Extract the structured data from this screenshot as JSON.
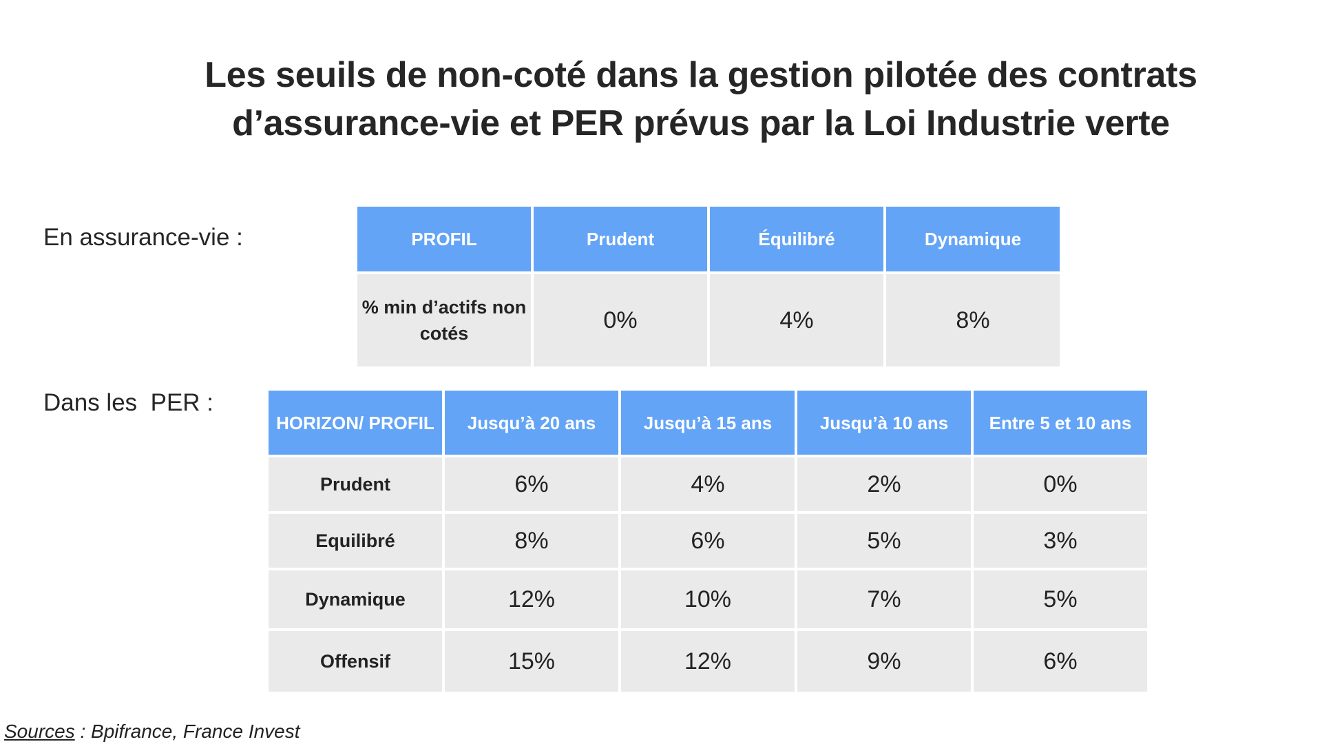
{
  "title": {
    "line1": "Les seuils de non-coté dans la gestion pilotée des contrats",
    "line2": "d’assurance-vie et PER prévus par la Loi Industrie verte"
  },
  "assurance_vie": {
    "label": "En assurance-vie :",
    "headers": [
      "PROFIL",
      "Prudent",
      "Équilibré",
      "Dynamique"
    ],
    "row_label": "% min d’actifs non cotés",
    "values": [
      "0%",
      "4%",
      "8%"
    ]
  },
  "per": {
    "label": "Dans les  PER :",
    "header_corner": "HORIZON/ PROFIL",
    "headers": [
      "Jusqu’à 20 ans",
      "Jusqu’à 15 ans",
      "Jusqu’à 10 ans",
      "Entre 5 et 10 ans"
    ],
    "rows": [
      {
        "profile": "Prudent",
        "values": [
          "6%",
          "4%",
          "2%",
          "0%"
        ]
      },
      {
        "profile": "Equilibré",
        "values": [
          "8%",
          "6%",
          "5%",
          "3%"
        ]
      },
      {
        "profile": "Dynamique",
        "values": [
          "12%",
          "10%",
          "7%",
          "5%"
        ]
      },
      {
        "profile": "Offensif",
        "values": [
          "15%",
          "12%",
          "9%",
          "6%"
        ]
      }
    ]
  },
  "source": {
    "label": "Sources",
    "text": " : Bpifrance, France Invest"
  },
  "colors": {
    "header_blue": "#63a4f7",
    "cell_grey": "#eaeaea"
  }
}
